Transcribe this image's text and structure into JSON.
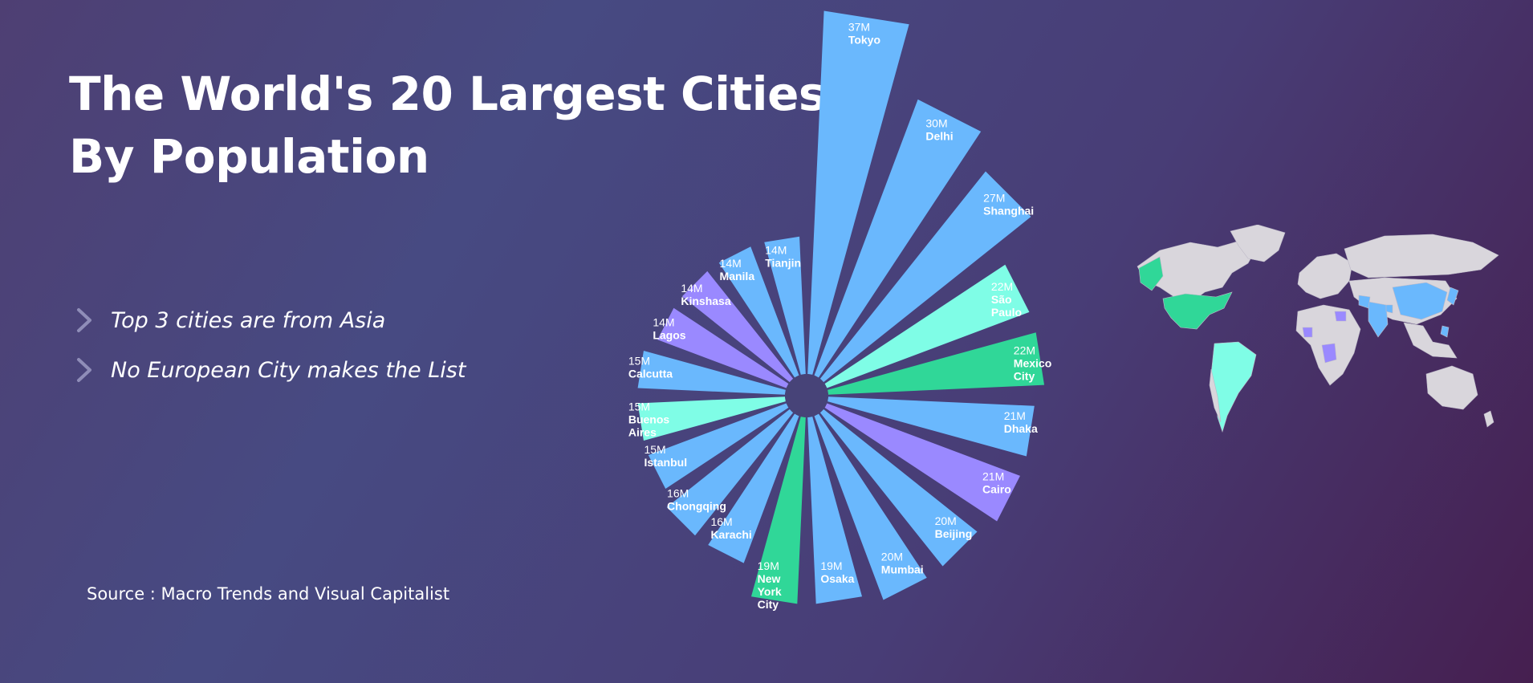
{
  "title": {
    "line1": "The World's 20 Largest Cities",
    "line2": "By Population"
  },
  "bullets": [
    {
      "text": "Top 3 cities are from Asia",
      "icon": "chevron-right-icon"
    },
    {
      "text": "No European City makes the List",
      "icon": "chevron-right-icon"
    }
  ],
  "source": "Source : Macro Trends and Visual Capitalist",
  "colors": {
    "asia": "#6ab8fd",
    "africa": "#9a89ff",
    "south_america": "#7ffde6",
    "north_america": "#30d798",
    "land": "#d9d6dc",
    "hole": "#474378"
  },
  "chart_data": {
    "type": "polar-bar",
    "title": "The World's 20 Largest Cities By Population",
    "unit": "M",
    "categories": [
      "Tokyo",
      "Delhi",
      "Shanghai",
      "São Paulo",
      "Mexico City",
      "Dhaka",
      "Cairo",
      "Beijing",
      "Mumbai",
      "Osaka",
      "New York City",
      "Karachi",
      "Chongqing",
      "Istanbul",
      "Buenos Aires",
      "Calcutta",
      "Lagos",
      "Kinshasa",
      "Manila",
      "Tianjin"
    ],
    "values": [
      37,
      30,
      27,
      22,
      22,
      21,
      21,
      20,
      20,
      19,
      19,
      16,
      16,
      15,
      15,
      15,
      14,
      14,
      14,
      14
    ],
    "value_labels": [
      "37M",
      "30M",
      "27M",
      "22M",
      "22M",
      "21M",
      "21M",
      "20M",
      "20M",
      "19M",
      "19M",
      "16M",
      "16M",
      "15M",
      "15M",
      "15M",
      "14M",
      "14M",
      "14M",
      "14M"
    ],
    "region": [
      "asia",
      "asia",
      "asia",
      "south_america",
      "north_america",
      "asia",
      "africa",
      "asia",
      "asia",
      "asia",
      "north_america",
      "asia",
      "asia",
      "asia",
      "south_america",
      "asia",
      "africa",
      "africa",
      "asia",
      "asia"
    ],
    "name_lines": [
      [
        "Tokyo"
      ],
      [
        "Delhi"
      ],
      [
        "Shanghai"
      ],
      [
        "São",
        "Paulo"
      ],
      [
        "Mexico",
        "City"
      ],
      [
        "Dhaka"
      ],
      [
        "Cairo"
      ],
      [
        "Beijing"
      ],
      [
        "Mumbai"
      ],
      [
        "Osaka"
      ],
      [
        "New",
        "York",
        "City"
      ],
      [
        "Karachi"
      ],
      [
        "Chongqing"
      ],
      [
        "Istanbul"
      ],
      [
        "Buenos",
        "Aires"
      ],
      [
        "Calcutta"
      ],
      [
        "Lagos"
      ],
      [
        "Kinshasa"
      ],
      [
        "Manila"
      ],
      [
        "Tianjin"
      ]
    ],
    "legend": "none"
  }
}
